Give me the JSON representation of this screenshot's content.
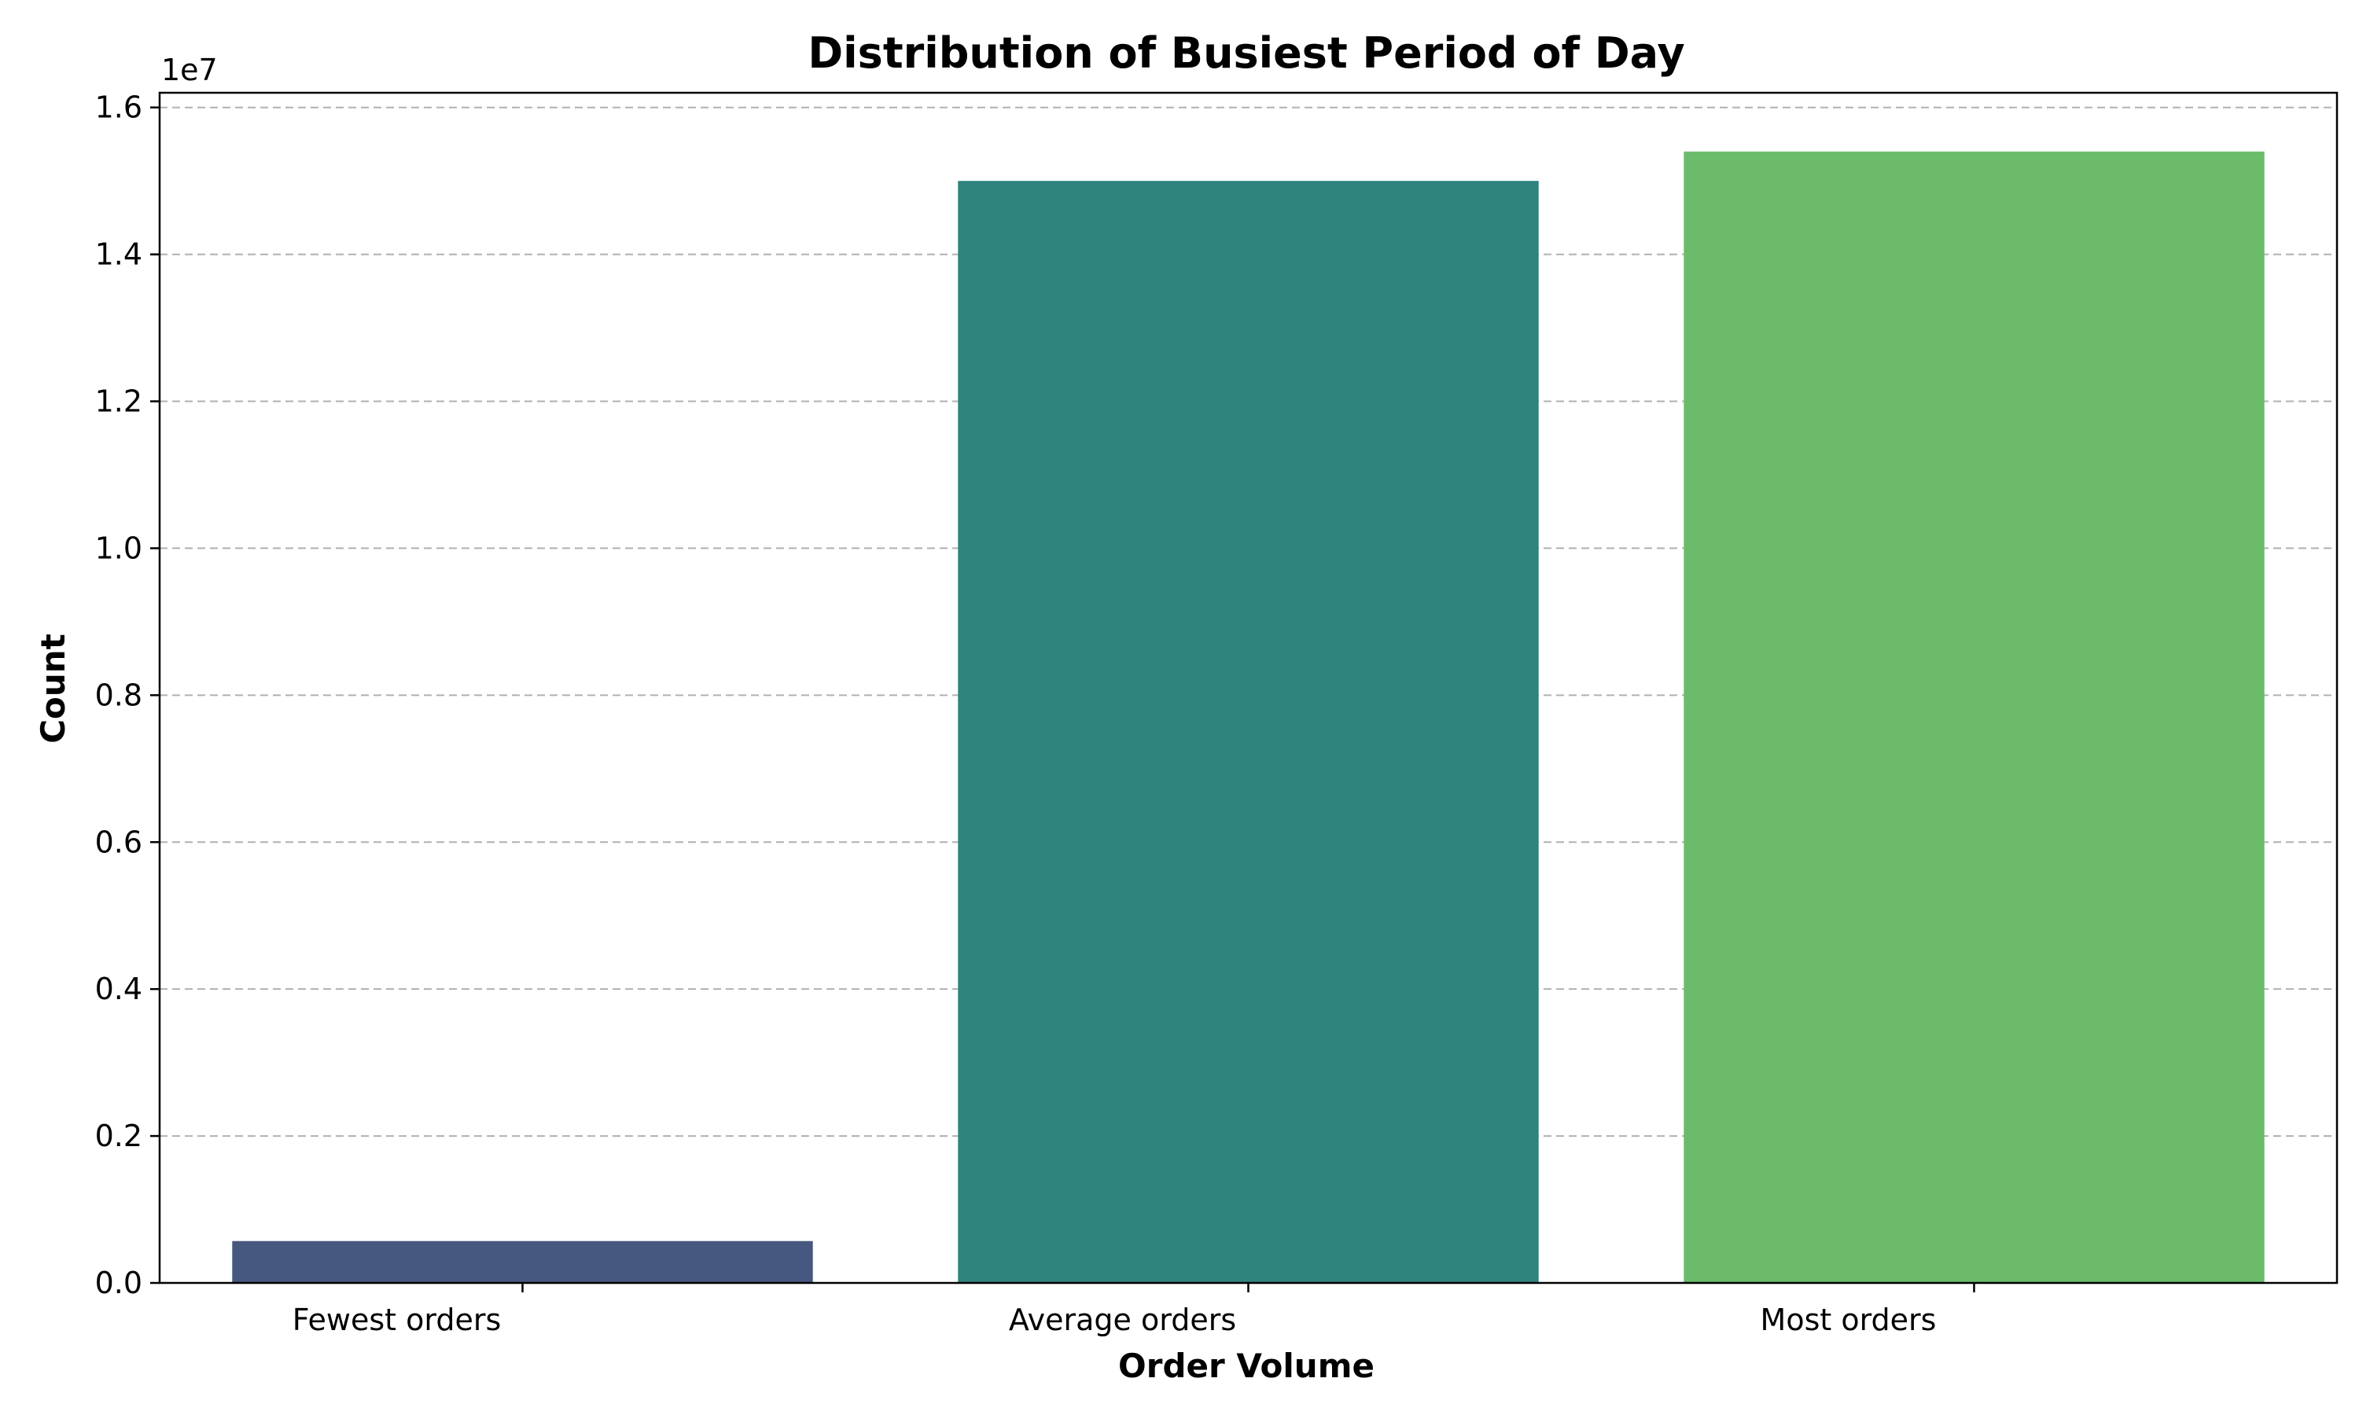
{
  "chart_data": {
    "type": "bar",
    "title": "Distribution of Busiest Period of Day",
    "xlabel": "Order Volume",
    "ylabel": "Count",
    "y_offset_label": "1e7",
    "categories": [
      "Fewest orders",
      "Average orders",
      "Most orders"
    ],
    "values": [
      570000,
      15000000,
      15400000
    ],
    "colors": [
      "#46587f",
      "#2e837d",
      "#6bbb6b"
    ],
    "ylim": [
      0,
      16200000
    ],
    "yticks": [
      0,
      2000000,
      4000000,
      6000000,
      8000000,
      10000000,
      12000000,
      14000000,
      16000000
    ],
    "ytick_labels": [
      "0.0",
      "0.2",
      "0.4",
      "0.6",
      "0.8",
      "1.0",
      "1.2",
      "1.4",
      "1.6"
    ],
    "grid": "y-dashed",
    "legend": "none"
  }
}
